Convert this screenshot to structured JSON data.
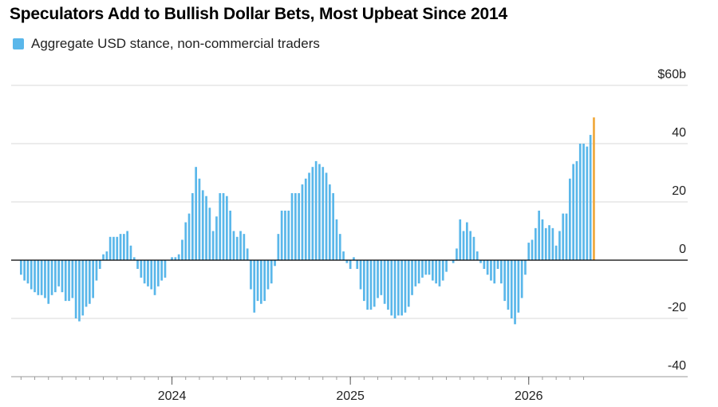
{
  "title": "Speculators Add to Bullish Dollar Bets, Most Upbeat Since 2014",
  "chart_data": {
    "type": "bar",
    "title": "Speculators Add to Bullish Dollar Bets, Most Upbeat Since 2014",
    "xlabel": "",
    "ylabel": "",
    "ylim": [
      -40,
      60
    ],
    "y_ticks": [
      {
        "value": 60,
        "label": "$60b"
      },
      {
        "value": 40,
        "label": "40"
      },
      {
        "value": 20,
        "label": "20"
      },
      {
        "value": 0,
        "label": "0"
      },
      {
        "value": -20,
        "label": "-20"
      },
      {
        "value": -40,
        "label": "-40"
      }
    ],
    "x_ticks": [
      {
        "index": 44,
        "label": "2024"
      },
      {
        "index": 96,
        "label": "2025"
      },
      {
        "index": 148,
        "label": "2026"
      }
    ],
    "grid": true,
    "legend": "top-left",
    "colors": {
      "series": "#5ab7ea",
      "highlight": "#f0a93c",
      "grid": "#d8d8d8",
      "zero": "#000000"
    },
    "series": [
      {
        "name": "Aggregate USD stance, non-commercial traders",
        "highlight_last": true,
        "values": [
          -5,
          -7,
          -8,
          -10,
          -11,
          -12,
          -12,
          -13,
          -15,
          -12,
          -11,
          -9,
          -11,
          -14,
          -14,
          -13,
          -20,
          -21,
          -19,
          -16,
          -15,
          -13,
          -7,
          -3,
          2,
          3,
          8,
          8,
          8,
          9,
          9,
          10,
          5,
          1,
          -3,
          -6,
          -8,
          -9,
          -10,
          -12,
          -9,
          -7,
          -6,
          0,
          1,
          1,
          2,
          7,
          13,
          16,
          23,
          32,
          28,
          24,
          22,
          18,
          10,
          15,
          23,
          23,
          22,
          17,
          10,
          8,
          10,
          9,
          4,
          -10,
          -18,
          -14,
          -15,
          -14,
          -10,
          -8,
          -2,
          9,
          17,
          17,
          17,
          23,
          23,
          23,
          26,
          28,
          30,
          32,
          34,
          33,
          32,
          30,
          26,
          23,
          14,
          9,
          3,
          -1,
          -3,
          1,
          -3,
          -10,
          -14,
          -17,
          -17,
          -16,
          -13,
          -12,
          -15,
          -17,
          -19,
          -20,
          -19,
          -19,
          -18,
          -16,
          -12,
          -9,
          -8,
          -6,
          -5,
          -5,
          -7,
          -8,
          -9,
          -7,
          -4,
          0,
          -1,
          4,
          14,
          10,
          13,
          10,
          8,
          3,
          -1,
          -3,
          -5,
          -7,
          -8,
          -3,
          -8,
          -14,
          -17,
          -20,
          -22,
          -18,
          -13,
          -5,
          6,
          7,
          11,
          17,
          14,
          11,
          12,
          11,
          5,
          10,
          16,
          16,
          28,
          33,
          34,
          40,
          40,
          39,
          43,
          49
        ]
      }
    ]
  }
}
